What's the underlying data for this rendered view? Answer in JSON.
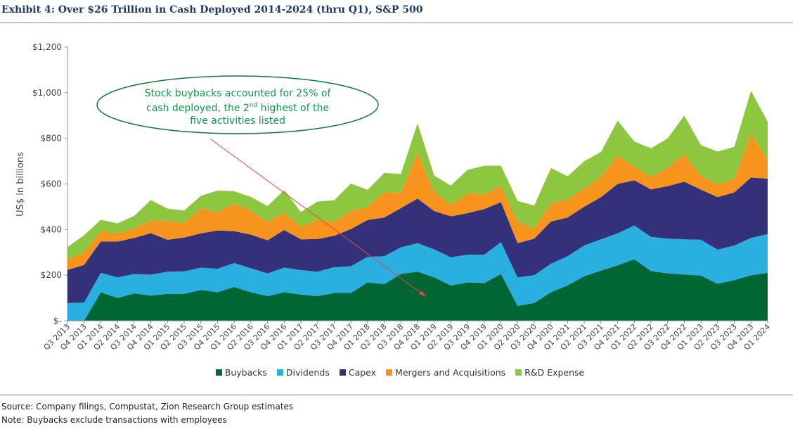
{
  "title": "Exhibit 4: Over $26 Trillion in Cash Deployed 2014-2024 (thru Q1), S&P 500",
  "footnotes": {
    "source": "Source: Company filings, Compustat, Zion Research Group estimates",
    "note": "Note: Buybacks exclude transactions with employees"
  },
  "annotation": {
    "line1": "Stock buybacks accounted for 25% of",
    "line2_pre": "cash deployed, the 2",
    "line2_sup": "nd",
    "line2_post": " highest of the",
    "line3": "five activities listed"
  },
  "colors": {
    "Buybacks": "#006633",
    "Dividends": "#29b0e0",
    "Capex": "#33317a",
    "Mergers and Acquisitions": "#f7941d",
    "R&D Expense": "#8dc63f",
    "callout": "#0e9a46",
    "arrow": "#e8473e"
  },
  "chart_data": {
    "type": "area",
    "stacked": true,
    "ylabel": "US$ in billions",
    "xlabel": "",
    "ylim": [
      0,
      1200
    ],
    "yticks": [
      0,
      200,
      400,
      600,
      800,
      1000,
      1200
    ],
    "ytick_labels": [
      "$-",
      "$200",
      "$400",
      "$600",
      "$800",
      "$1,000",
      "$1,200"
    ],
    "legend_position": "bottom",
    "categories": [
      "Q3 2013",
      "Q4 2013",
      "Q1 2014",
      "Q2 2014",
      "Q3 2014",
      "Q4 2014",
      "Q1 2015",
      "Q2 2015",
      "Q3 2015",
      "Q4 2015",
      "Q1 2016",
      "Q2 2016",
      "Q3 2016",
      "Q4 2016",
      "Q1 2017",
      "Q2 2017",
      "Q3 2017",
      "Q4 2017",
      "Q1 2018",
      "Q2 2018",
      "Q3 2018",
      "Q4 2018",
      "Q1 2019",
      "Q2 2019",
      "Q3 2019",
      "Q4 2019",
      "Q1 2020",
      "Q2 2020",
      "Q3 2020",
      "Q4 2020",
      "Q1 2021",
      "Q2 2021",
      "Q3 2021",
      "Q4 2021",
      "Q1 2022",
      "Q2 2022",
      "Q3 2022",
      "Q4 2022",
      "Q1 2023",
      "Q2 2023",
      "Q3 2023",
      "Q4 2023",
      "Q1 2024"
    ],
    "series": [
      {
        "name": "Buybacks",
        "values": [
          0,
          0,
          125,
          100,
          120,
          110,
          118,
          118,
          135,
          125,
          148,
          125,
          108,
          125,
          115,
          108,
          122,
          122,
          168,
          160,
          205,
          215,
          190,
          155,
          168,
          165,
          205,
          65,
          78,
          125,
          155,
          195,
          220,
          243,
          270,
          218,
          208,
          203,
          198,
          162,
          178,
          200,
          210
        ]
      },
      {
        "name": "Dividends",
        "values": [
          78,
          80,
          85,
          90,
          85,
          92,
          97,
          99,
          98,
          103,
          105,
          105,
          100,
          108,
          107,
          107,
          113,
          117,
          112,
          123,
          117,
          125,
          123,
          123,
          122,
          125,
          140,
          125,
          122,
          125,
          128,
          135,
          137,
          140,
          148,
          150,
          152,
          154,
          157,
          150,
          152,
          163,
          170
        ]
      },
      {
        "name": "Capex",
        "values": [
          145,
          165,
          138,
          157,
          158,
          182,
          140,
          148,
          150,
          168,
          140,
          148,
          145,
          165,
          135,
          143,
          138,
          163,
          162,
          170,
          172,
          196,
          168,
          180,
          182,
          200,
          175,
          150,
          160,
          185,
          170,
          170,
          185,
          217,
          198,
          208,
          230,
          253,
          220,
          230,
          233,
          265,
          243
        ]
      },
      {
        "name": "Mergers and Acquisitions",
        "values": [
          45,
          55,
          45,
          35,
          42,
          55,
          82,
          63,
          110,
          80,
          120,
          105,
          80,
          75,
          55,
          85,
          60,
          80,
          57,
          110,
          70,
          200,
          85,
          50,
          85,
          65,
          70,
          95,
          45,
          80,
          80,
          80,
          88,
          123,
          60,
          55,
          80,
          120,
          60,
          55,
          60,
          190,
          85
        ]
      },
      {
        "name": "R&D Expense",
        "values": [
          55,
          75,
          50,
          45,
          55,
          90,
          55,
          55,
          55,
          95,
          55,
          60,
          70,
          100,
          65,
          80,
          95,
          120,
          75,
          85,
          80,
          130,
          70,
          85,
          105,
          125,
          90,
          90,
          100,
          155,
          100,
          120,
          110,
          155,
          110,
          125,
          130,
          170,
          135,
          145,
          140,
          190,
          165
        ]
      }
    ]
  }
}
